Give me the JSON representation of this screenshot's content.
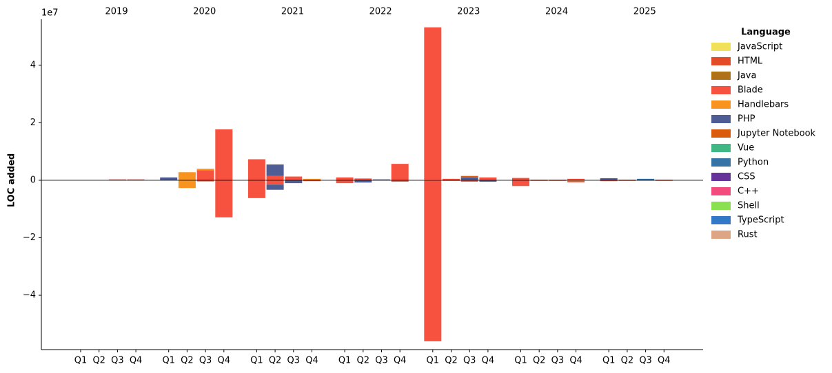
{
  "chart_data": {
    "type": "diverging_stacked_bar",
    "y_label": "LOC added",
    "y_offset_label": "1e7",
    "years": [
      "2019",
      "2020",
      "2021",
      "2022",
      "2023",
      "2024",
      "2025"
    ],
    "categories": [
      "Q1",
      "Q2",
      "Q3",
      "Q4",
      "Q1",
      "Q2",
      "Q3",
      "Q4",
      "Q1",
      "Q2",
      "Q3",
      "Q4",
      "Q1",
      "Q2",
      "Q3",
      "Q4",
      "Q1",
      "Q2",
      "Q3",
      "Q4",
      "Q1",
      "Q2",
      "Q3",
      "Q4",
      "Q1",
      "Q2",
      "Q3",
      "Q4"
    ],
    "ylim": [
      -5.89,
      5.6
    ],
    "yticks": [
      {
        "value": -4,
        "label": "−4"
      },
      {
        "value": -2,
        "label": "−2"
      },
      0,
      2,
      4
    ],
    "legend_title": "Language",
    "legend_position": "outside right",
    "series": [
      {
        "name": "JavaScript",
        "color": "#f1e05a",
        "values": [
          0,
          0,
          0,
          0,
          0,
          0,
          0,
          0,
          0,
          0,
          0,
          0,
          0,
          0,
          0,
          0,
          0.02,
          0,
          0,
          0,
          0,
          0,
          0,
          0,
          0,
          0,
          0,
          0
        ],
        "removed": [
          0,
          0,
          0,
          0,
          0,
          0,
          0,
          0,
          0,
          0,
          0,
          0,
          0,
          0,
          0,
          0,
          0,
          0,
          0,
          0,
          0,
          0,
          0,
          -0.02,
          0,
          0,
          0,
          0
        ]
      },
      {
        "name": "HTML",
        "color": "#e34c26",
        "values": [
          0,
          0,
          0.01,
          0.01,
          0,
          0,
          0,
          0,
          0,
          0,
          0,
          0,
          0,
          0,
          0,
          0,
          0,
          0,
          0,
          0,
          0,
          0,
          0,
          0,
          0,
          0,
          0,
          0
        ],
        "removed": [
          0,
          0,
          0,
          0,
          0,
          0,
          0,
          0,
          0,
          0,
          0,
          0,
          0,
          0,
          0,
          0,
          0,
          0,
          0,
          0,
          0,
          0,
          0,
          0,
          0,
          0,
          0,
          0
        ]
      },
      {
        "name": "Java",
        "color": "#b07219",
        "values": [
          0,
          0,
          0,
          0,
          0,
          0,
          0,
          0,
          0,
          0,
          0,
          0,
          0,
          0,
          0,
          0,
          0,
          0,
          0,
          0,
          0,
          0,
          0,
          0,
          0,
          0,
          0,
          0
        ],
        "removed": [
          0,
          0,
          0,
          0,
          0,
          0,
          0,
          0,
          0,
          0,
          0,
          0,
          0,
          0,
          0,
          0,
          0,
          0,
          0,
          0,
          0,
          0,
          0,
          0,
          0,
          0,
          0,
          0
        ]
      },
      {
        "name": "Blade",
        "color": "#f7523f",
        "values": [
          0,
          0,
          0.02,
          0.02,
          0,
          0,
          0.35,
          1.77,
          0.73,
          0.15,
          0.13,
          0,
          0.1,
          0.05,
          0,
          0.57,
          5.3,
          0.05,
          0,
          0.1,
          0.08,
          0.02,
          0.02,
          0.05,
          0,
          0.02,
          0,
          0.02
        ],
        "removed": [
          0,
          0,
          0,
          0,
          0,
          0,
          -0.03,
          -1.29,
          -0.62,
          -0.15,
          0,
          -0.03,
          -0.1,
          0,
          0,
          -0.05,
          -5.6,
          -0.02,
          -0.05,
          0,
          -0.2,
          -0.02,
          -0.02,
          -0.05,
          -0.03,
          -0.02,
          0,
          -0.02
        ]
      },
      {
        "name": "Handlebars",
        "color": "#f7931e",
        "values": [
          0,
          0,
          0,
          0,
          0,
          0.28,
          0.05,
          0,
          0,
          0,
          0,
          0.05,
          0,
          0.02,
          0,
          0,
          0,
          0,
          0,
          0,
          0,
          0,
          0,
          0,
          0,
          0,
          0,
          0
        ],
        "removed": [
          0,
          0,
          0,
          0,
          0,
          -0.27,
          -0.02,
          0,
          0,
          0,
          0,
          0,
          0,
          0,
          0,
          0,
          0,
          0,
          0,
          0,
          0,
          0,
          0,
          0,
          0,
          0,
          0,
          0
        ]
      },
      {
        "name": "PHP",
        "color": "#4f5d95",
        "values": [
          0,
          0,
          0,
          0,
          0.1,
          0,
          0,
          0,
          0,
          0.4,
          0,
          0,
          0,
          0,
          0.03,
          0,
          0,
          0,
          0.1,
          0,
          0,
          0,
          0,
          0,
          0.07,
          0,
          0,
          0
        ],
        "removed": [
          0,
          0,
          0,
          0,
          0,
          0,
          0,
          0,
          0,
          -0.18,
          -0.1,
          0,
          0,
          -0.08,
          0,
          0,
          0,
          0,
          0,
          -0.05,
          0,
          0,
          0,
          0,
          0,
          0,
          0,
          0
        ]
      },
      {
        "name": "Jupyter Notebook",
        "color": "#da5b0b",
        "values": [
          0,
          0,
          0,
          0,
          0,
          0,
          0,
          0,
          0,
          0,
          0,
          0,
          0,
          0,
          0,
          0,
          0,
          0,
          0.05,
          0,
          0,
          0,
          0,
          0,
          0,
          0,
          0,
          0
        ],
        "removed": [
          0,
          0,
          0,
          0,
          0,
          0,
          0,
          0,
          0,
          0,
          0,
          0,
          0,
          0,
          0,
          0,
          0,
          0,
          0,
          0,
          0,
          0,
          0,
          0,
          0,
          0,
          0,
          0
        ]
      },
      {
        "name": "Vue",
        "color": "#41b883",
        "values": [
          0,
          0,
          0,
          0,
          0,
          0,
          0,
          0,
          0,
          0,
          0,
          0,
          0,
          0,
          0,
          0,
          0,
          0,
          0,
          0,
          0,
          0,
          0,
          0,
          0,
          0,
          0,
          0
        ],
        "removed": [
          0,
          0,
          0,
          0,
          0,
          0,
          0,
          0,
          0,
          0,
          0,
          0,
          0,
          0,
          0,
          0,
          0,
          0,
          0,
          0,
          0,
          0,
          0,
          0,
          0,
          0,
          0,
          0
        ]
      },
      {
        "name": "Python",
        "color": "#3572a5",
        "values": [
          0,
          0,
          0,
          0,
          0,
          0,
          0,
          0,
          0,
          0,
          0,
          0,
          0,
          0,
          0,
          0,
          0,
          0,
          0,
          0,
          0,
          0,
          0,
          0,
          0,
          0,
          0.05,
          0
        ],
        "removed": [
          0,
          0,
          0,
          0,
          0,
          0,
          0,
          0,
          0,
          0,
          0,
          0,
          0,
          0,
          0,
          0,
          0,
          0,
          0,
          0,
          0,
          0,
          0,
          0,
          0,
          0,
          -0.01,
          0
        ]
      },
      {
        "name": "CSS",
        "color": "#663399",
        "values": [
          0,
          0,
          0,
          0,
          0,
          0,
          0,
          0,
          0,
          0,
          0,
          0,
          0,
          0,
          0,
          0,
          0,
          0,
          0,
          0,
          0,
          0,
          0,
          0,
          0,
          0,
          0,
          0
        ],
        "removed": [
          0,
          0,
          0,
          0,
          0,
          0,
          0,
          0,
          0,
          0,
          0,
          0,
          0,
          0,
          0,
          0,
          0,
          0,
          0,
          0,
          0,
          0,
          0,
          0,
          0,
          0,
          0,
          0
        ]
      },
      {
        "name": "C++",
        "color": "#f34b7d",
        "values": [
          0,
          0,
          0,
          0,
          0,
          0,
          0,
          0,
          0,
          0,
          0,
          0,
          0,
          0,
          0,
          0,
          0,
          0,
          0,
          0,
          0,
          0,
          0,
          0,
          0,
          0,
          0,
          0
        ],
        "removed": [
          0,
          0,
          0,
          0,
          0,
          0,
          0,
          0,
          0,
          0,
          0,
          0,
          0,
          0,
          0,
          0,
          0,
          0,
          0,
          0,
          0,
          0,
          0,
          0,
          0,
          0,
          0,
          0
        ]
      },
      {
        "name": "Shell",
        "color": "#89e051",
        "values": [
          0,
          0,
          0,
          0,
          0,
          0,
          0,
          0,
          0,
          0,
          0,
          0,
          0,
          0,
          0,
          0,
          0,
          0,
          0,
          0,
          0,
          0,
          0,
          0,
          0,
          0,
          0,
          0
        ],
        "removed": [
          0,
          0,
          0,
          0,
          0,
          0,
          0,
          0,
          0,
          0,
          0,
          0,
          0,
          0,
          0,
          0,
          0,
          0,
          0,
          0,
          0,
          0,
          0,
          0,
          0,
          0,
          0,
          0
        ]
      },
      {
        "name": "TypeScript",
        "color": "#3178c6",
        "values": [
          0,
          0,
          0,
          0,
          0,
          0,
          0,
          0,
          0,
          0,
          0,
          0,
          0,
          0,
          0,
          0,
          0,
          0,
          0,
          0,
          0,
          0,
          0,
          0,
          0,
          0,
          0,
          0
        ],
        "removed": [
          0,
          0,
          0,
          0,
          0,
          0,
          0,
          0,
          0,
          0,
          0,
          0,
          0,
          0,
          0,
          0,
          0,
          0,
          0,
          0,
          0,
          0,
          0,
          0,
          0,
          0,
          0,
          0
        ]
      },
      {
        "name": "Rust",
        "color": "#dea584",
        "values": [
          0,
          0,
          0,
          0,
          0,
          0,
          0,
          0,
          0,
          0,
          0,
          0,
          0,
          0,
          0,
          0,
          0,
          0,
          0,
          0,
          0,
          0,
          0,
          0,
          0,
          0,
          0,
          0
        ],
        "removed": [
          0,
          0,
          0,
          0,
          0,
          0,
          0,
          0,
          0,
          0,
          0,
          0,
          0,
          0,
          0,
          0,
          0,
          0,
          0,
          0,
          0,
          0,
          0,
          0,
          0,
          0,
          0,
          0
        ]
      }
    ]
  }
}
